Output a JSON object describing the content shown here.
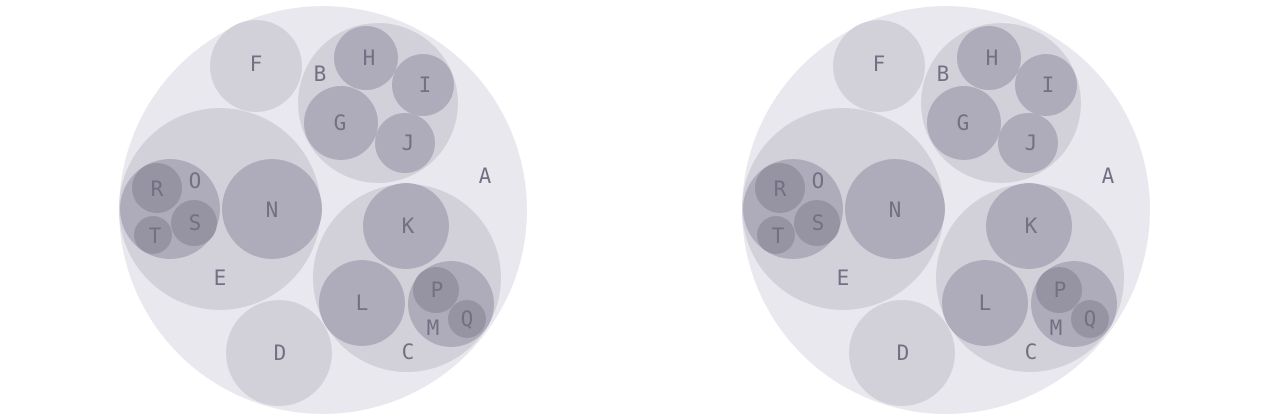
{
  "diagram": {
    "type": "circle-packing",
    "colors": {
      "depth0": "#e9e8ee",
      "depth1": "#d2d1d9",
      "depth2": "#aeabba",
      "depth3": "#9693a3",
      "label": "#737083"
    },
    "nodes": [
      {
        "id": "A",
        "label": "A",
        "depth": 0
      },
      {
        "id": "F",
        "label": "F",
        "depth": 1
      },
      {
        "id": "B",
        "label": "B",
        "depth": 1
      },
      {
        "id": "H",
        "label": "H",
        "depth": 2
      },
      {
        "id": "I",
        "label": "I",
        "depth": 2
      },
      {
        "id": "G",
        "label": "G",
        "depth": 2
      },
      {
        "id": "J",
        "label": "J",
        "depth": 2
      },
      {
        "id": "E",
        "label": "E",
        "depth": 1
      },
      {
        "id": "O",
        "label": "O",
        "depth": 2
      },
      {
        "id": "R",
        "label": "R",
        "depth": 3
      },
      {
        "id": "S",
        "label": "S",
        "depth": 3
      },
      {
        "id": "T",
        "label": "T",
        "depth": 3
      },
      {
        "id": "N",
        "label": "N",
        "depth": 2
      },
      {
        "id": "C",
        "label": "C",
        "depth": 1
      },
      {
        "id": "K",
        "label": "K",
        "depth": 2
      },
      {
        "id": "L",
        "label": "L",
        "depth": 2
      },
      {
        "id": "M",
        "label": "M",
        "depth": 2
      },
      {
        "id": "P",
        "label": "P",
        "depth": 3
      },
      {
        "id": "Q",
        "label": "Q",
        "depth": 3
      },
      {
        "id": "D",
        "label": "D",
        "depth": 1
      }
    ]
  }
}
